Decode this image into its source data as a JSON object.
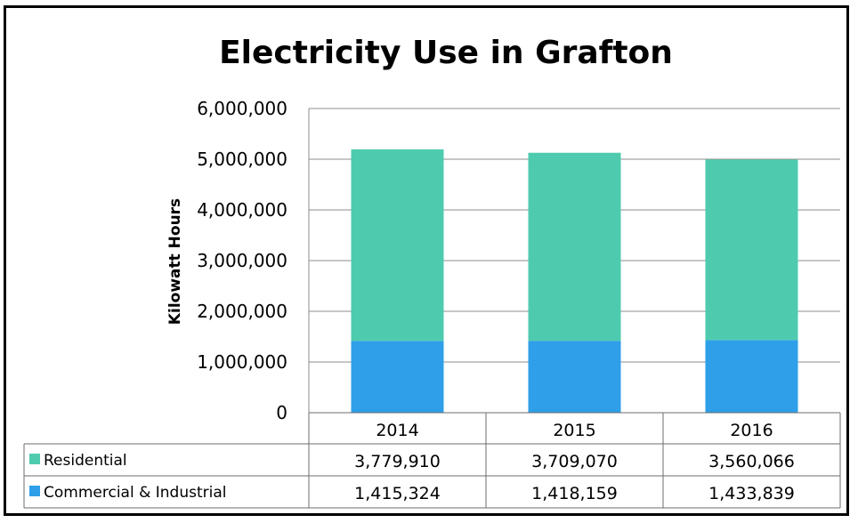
{
  "chart_data": {
    "type": "bar",
    "stacked": true,
    "title": "Electricity Use in Grafton",
    "xlabel": "",
    "ylabel": "Kilowatt Hours",
    "categories": [
      "2014",
      "2015",
      "2016"
    ],
    "series": [
      {
        "name": "Residential",
        "values": [
          3779910,
          3709070,
          3560066
        ],
        "color": "#4ecbae"
      },
      {
        "name": "Commercial & Industrial",
        "values": [
          1415324,
          1418159,
          1433839
        ],
        "color": "#2e9fe8"
      }
    ],
    "ylim": [
      0,
      6000000
    ],
    "yticks": [
      0,
      1000000,
      2000000,
      3000000,
      4000000,
      5000000,
      6000000
    ],
    "ytick_labels": [
      "0",
      "1,000,000",
      "2,000,000",
      "3,000,000",
      "4,000,000",
      "5,000,000",
      "6,000,000"
    ],
    "data_table": {
      "rows": [
        {
          "label": "Residential",
          "cells": [
            "3,779,910",
            "3,709,070",
            "3,560,066"
          ]
        },
        {
          "label": "Commercial & Industrial",
          "cells": [
            "1,415,324",
            "1,418,159",
            "1,433,839"
          ]
        }
      ]
    },
    "grid": true
  }
}
